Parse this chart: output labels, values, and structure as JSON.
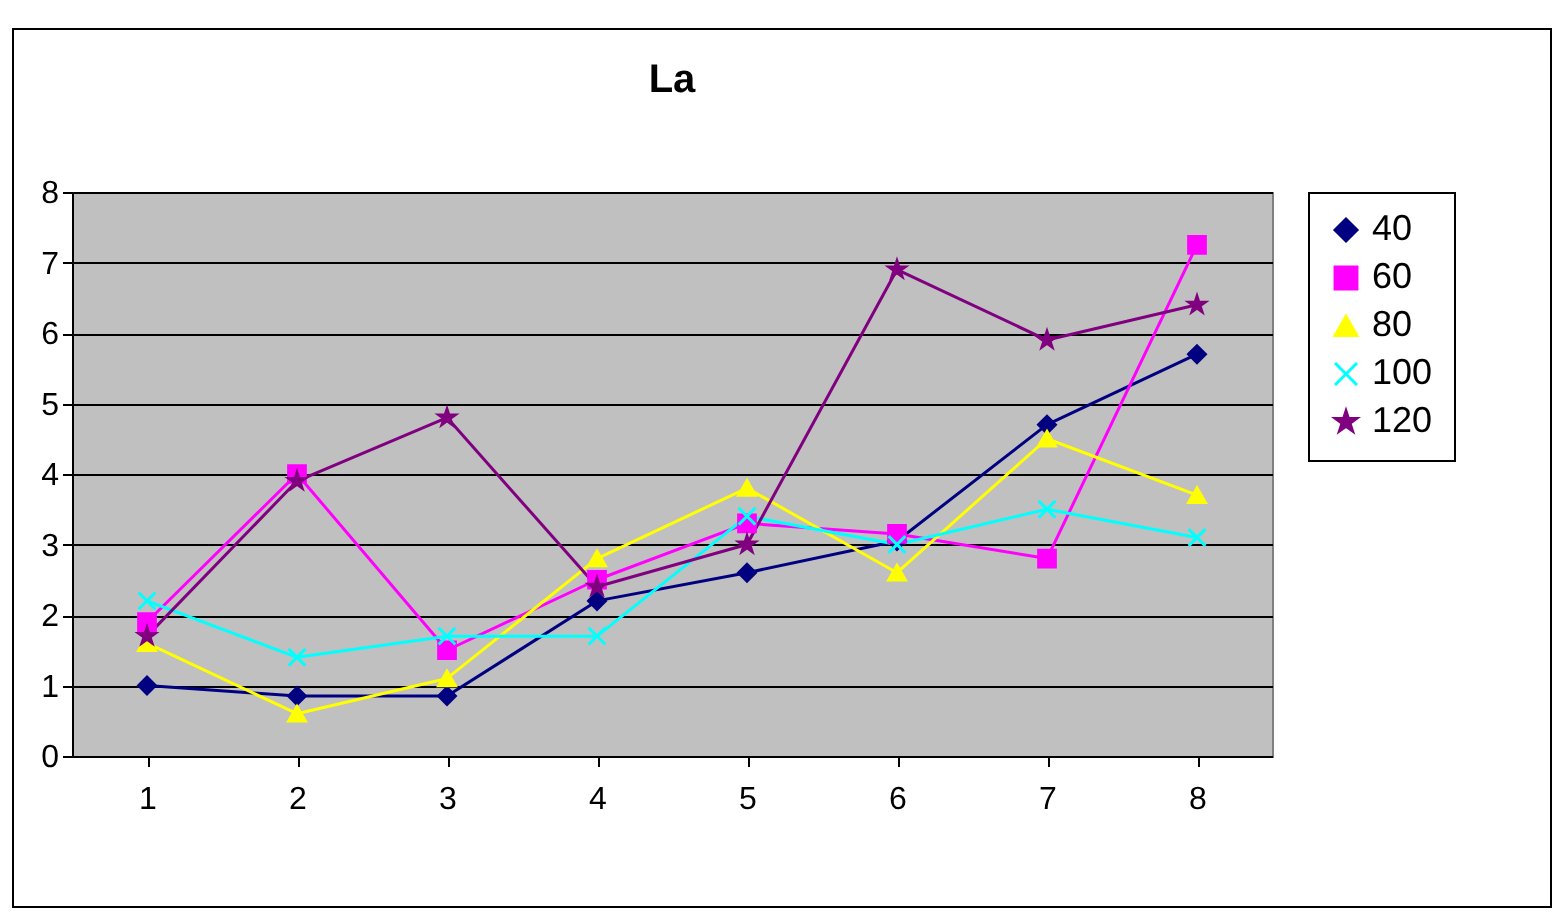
{
  "chart_data": {
    "type": "line",
    "title": "La",
    "categories": [
      "1",
      "2",
      "3",
      "4",
      "5",
      "6",
      "7",
      "8"
    ],
    "series": [
      {
        "name": "40",
        "color": "#000080",
        "marker": "diamond",
        "values": [
          1.0,
          0.85,
          0.85,
          2.2,
          2.6,
          3.05,
          4.7,
          5.7
        ]
      },
      {
        "name": "60",
        "color": "#ff00ff",
        "marker": "square",
        "values": [
          1.9,
          4.0,
          1.5,
          2.5,
          3.3,
          3.15,
          2.8,
          7.25
        ]
      },
      {
        "name": "80",
        "color": "#ffff00",
        "marker": "triangle",
        "values": [
          1.6,
          0.6,
          1.1,
          2.8,
          3.8,
          2.6,
          4.5,
          3.7
        ]
      },
      {
        "name": "100",
        "color": "#00ffff",
        "marker": "cross",
        "values": [
          2.2,
          1.4,
          1.7,
          1.7,
          3.4,
          3.0,
          3.5,
          3.1
        ]
      },
      {
        "name": "120",
        "color": "#800080",
        "marker": "star",
        "values": [
          1.7,
          3.9,
          4.8,
          2.4,
          3.0,
          6.9,
          5.9,
          6.4
        ]
      }
    ],
    "ylim": [
      0,
      8
    ],
    "yticks": [
      0,
      1,
      2,
      3,
      4,
      5,
      6,
      7,
      8
    ],
    "grid": "y",
    "legend": "right",
    "line_style": "solid"
  }
}
